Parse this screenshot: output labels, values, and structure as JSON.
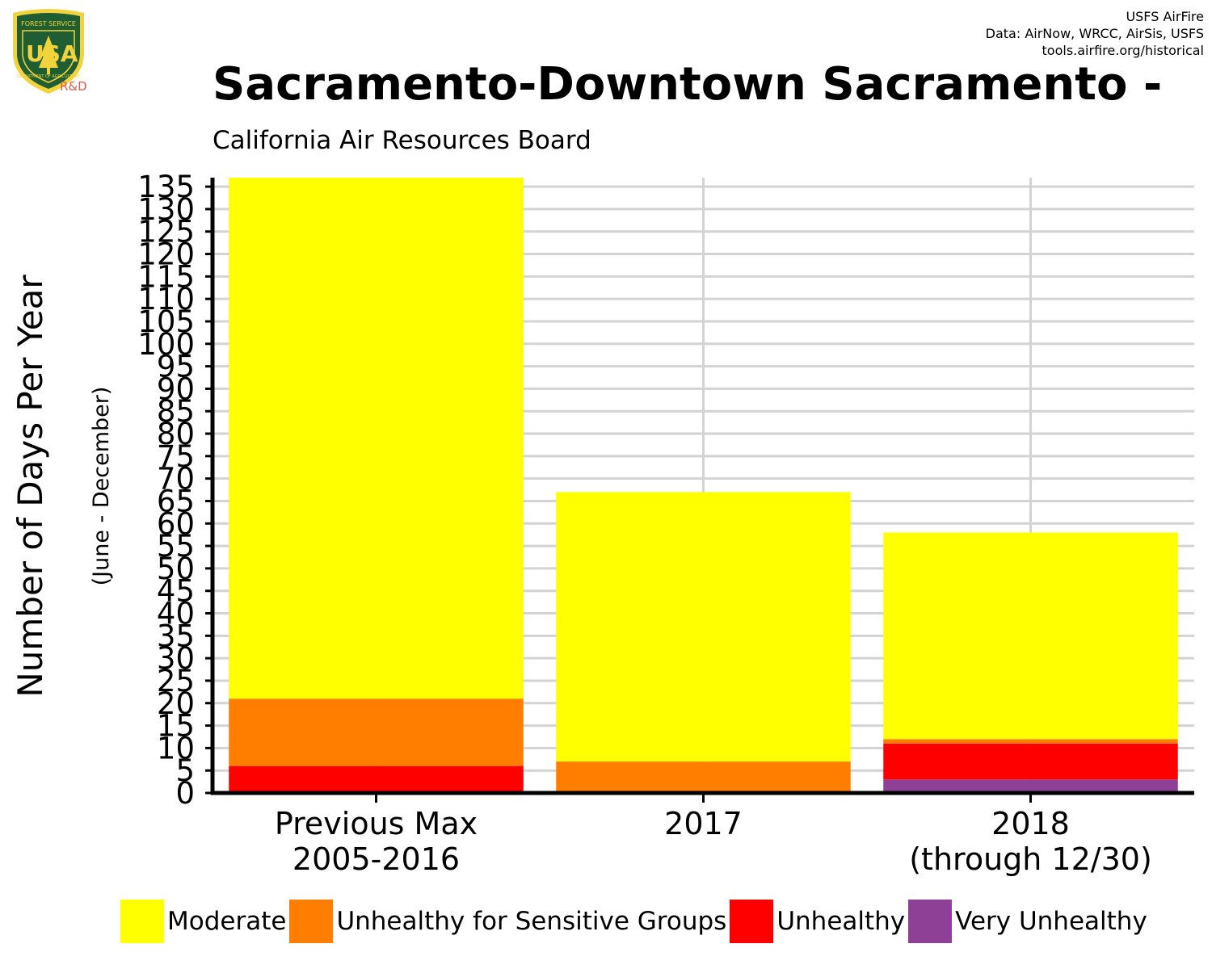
{
  "header": {
    "credit_lines": [
      "USFS AirFire",
      "Data: AirNow, WRCC, AirSis, USFS",
      "tools.airfire.org/historical"
    ],
    "title": "Sacramento-Downtown Sacramento -",
    "subtitle": "California Air Resources Board",
    "logo": {
      "icon": "us-forest-service-shield-icon",
      "top_text": "FOREST SERVICE",
      "letters": "USA",
      "bottom_text": "DEPARTMENT OF AGRICULTURE",
      "tag": "R&D"
    }
  },
  "chart_data": {
    "type": "bar",
    "stacked": true,
    "title": "Sacramento-Downtown Sacramento -",
    "subtitle": "California Air Resources Board",
    "xlabel": "",
    "ylabel": "Number of Days Per Year",
    "ylabel_sub": "(June - December)",
    "ylim": [
      0,
      137
    ],
    "yticks": [
      0,
      5,
      10,
      15,
      20,
      25,
      30,
      35,
      40,
      45,
      50,
      55,
      60,
      65,
      70,
      75,
      80,
      85,
      90,
      95,
      100,
      105,
      110,
      115,
      120,
      125,
      130,
      135
    ],
    "grid": true,
    "legend_position": "bottom",
    "categories": [
      {
        "lines": [
          "Previous Max",
          "2005-2016"
        ]
      },
      {
        "lines": [
          "2017"
        ]
      },
      {
        "lines": [
          "2018",
          "(through 12/30)"
        ]
      }
    ],
    "series": [
      {
        "name": "Very Unhealthy",
        "color": "#8e3f96",
        "values": [
          0,
          0,
          3
        ]
      },
      {
        "name": "Unhealthy",
        "color": "#ff0000",
        "values": [
          6,
          0,
          8
        ]
      },
      {
        "name": "Unhealthy for Sensitive Groups",
        "color": "#ff7e00",
        "values": [
          15,
          7,
          1
        ]
      },
      {
        "name": "Moderate",
        "color": "#ffff00",
        "values": [
          116,
          60,
          46
        ]
      }
    ]
  },
  "legend": [
    {
      "label": "Moderate",
      "color": "#ffff00"
    },
    {
      "label": "Unhealthy for Sensitive Groups",
      "color": "#ff7e00"
    },
    {
      "label": "Unhealthy",
      "color": "#ff0000"
    },
    {
      "label": "Very Unhealthy",
      "color": "#8e3f96"
    }
  ]
}
